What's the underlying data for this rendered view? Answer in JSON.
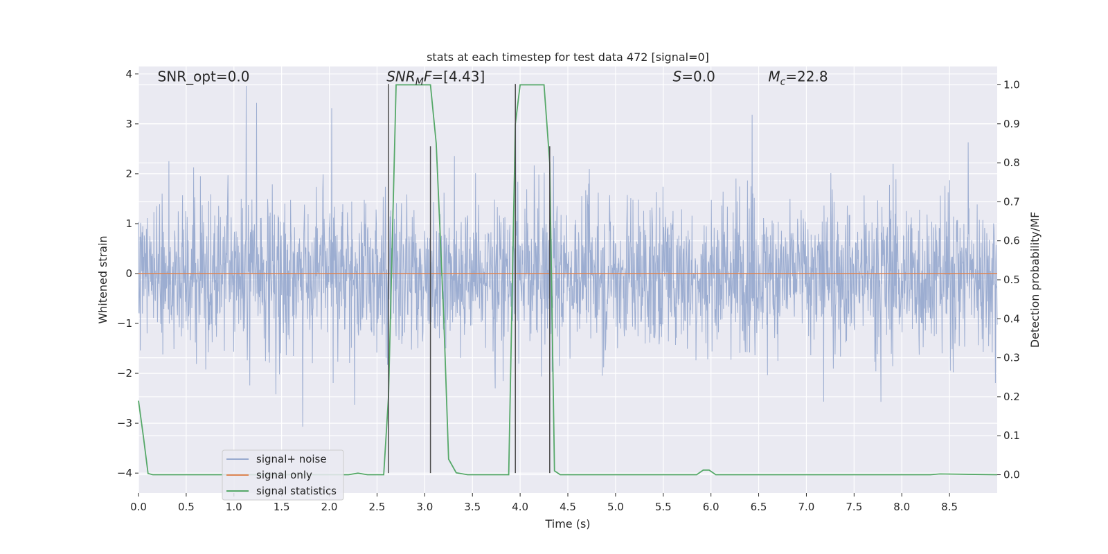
{
  "chart_data": {
    "type": "line",
    "title": "stats at each timestep for test data 472 [signal=0]",
    "xlabel": "Time (s)",
    "ylabel": "Whitened strain",
    "y2label": "Detection probability/MF",
    "xlim": [
      0,
      9.0
    ],
    "ylim": [
      -4.4,
      4.15
    ],
    "y2lim": [
      -0.047,
      1.047
    ],
    "grid": true,
    "legend_position": "lower-left",
    "x_ticks": [
      "0.0",
      "0.5",
      "1.0",
      "1.5",
      "2.0",
      "2.5",
      "3.0",
      "3.5",
      "4.0",
      "4.5",
      "5.0",
      "5.5",
      "6.0",
      "6.5",
      "7.0",
      "7.5",
      "8.0",
      "8.5"
    ],
    "y_ticks": [
      "−4",
      "−3",
      "−2",
      "−1",
      "0",
      "1",
      "2",
      "3",
      "4"
    ],
    "y2_ticks": [
      "0.0",
      "0.1",
      "0.2",
      "0.3",
      "0.4",
      "0.5",
      "0.6",
      "0.7",
      "0.8",
      "0.9",
      "1.0"
    ],
    "annotations": [
      {
        "label": "SNR_opt=0.0",
        "x": 0.2,
        "y": 3.85
      },
      {
        "label": "SNR_MF=[4.43]",
        "x": 2.6,
        "y": 3.85
      },
      {
        "label": "S=0.0",
        "x": 5.6,
        "y": 3.85
      },
      {
        "label": "M_c=22.8",
        "x": 6.6,
        "y": 3.85
      }
    ],
    "vertical_lines": {
      "tall": [
        2.62,
        3.95
      ],
      "short": [
        3.06,
        4.31
      ]
    },
    "series": [
      {
        "name": "signal+ noise",
        "color": "#98aacf",
        "axis": "left",
        "description": "noise band approx ±1.7 with peaks to about 3.8"
      },
      {
        "name": "signal only",
        "color": "#dd8452",
        "axis": "left",
        "x": [
          0,
          9.0
        ],
        "y": [
          0,
          0
        ]
      },
      {
        "name": "signal statistics",
        "color": "#55a868",
        "axis": "right",
        "x": [
          0,
          0.05,
          0.1,
          0.15,
          2.2,
          2.3,
          2.4,
          2.5,
          2.57,
          2.62,
          2.7,
          2.8,
          3.0,
          3.06,
          3.12,
          3.2,
          3.25,
          3.33,
          3.45,
          3.88,
          3.95,
          4.0,
          4.05,
          4.25,
          4.31,
          4.36,
          4.42,
          5.85,
          5.92,
          5.98,
          6.05,
          8.3,
          8.4,
          9.0
        ],
        "y": [
          0.19,
          0.1,
          0.003,
          0.0,
          0.0,
          0.004,
          0.0,
          0.0,
          0.0,
          0.2,
          1.0,
          1.0,
          1.0,
          1.0,
          0.85,
          0.4,
          0.04,
          0.005,
          0.0,
          0.0,
          0.9,
          1.0,
          1.0,
          1.0,
          0.8,
          0.01,
          0.0,
          0.0,
          0.012,
          0.012,
          0.0,
          0.0,
          0.002,
          0.0
        ]
      }
    ]
  }
}
